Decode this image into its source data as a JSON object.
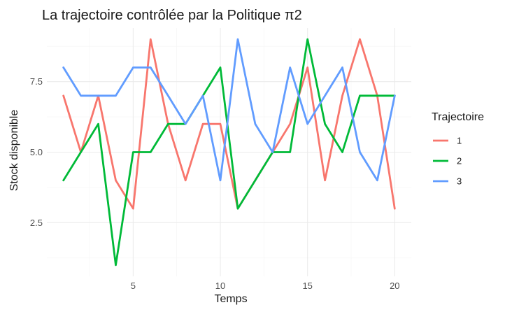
{
  "chart_data": {
    "type": "line",
    "title": "La trajectoire contrôlée par la Politique π2",
    "xlabel": "Temps",
    "ylabel": "Stock disponible",
    "x": [
      1,
      2,
      3,
      4,
      5,
      6,
      7,
      8,
      9,
      10,
      11,
      12,
      13,
      14,
      15,
      16,
      17,
      18,
      19,
      20
    ],
    "xlim": [
      0.05,
      20.95
    ],
    "ylim": [
      0.6,
      9.4
    ],
    "x_ticks": [
      5,
      10,
      15,
      20
    ],
    "x_tick_labels": [
      "5",
      "10",
      "15",
      "20"
    ],
    "y_ticks": [
      2.5,
      5.0,
      7.5
    ],
    "y_tick_labels": [
      "2.5",
      "5.0",
      "7.5"
    ],
    "grid": true,
    "legend": {
      "title": "Trajectoire",
      "placement": "right"
    },
    "series": [
      {
        "name": "1",
        "color": "#F8766D",
        "values": [
          7,
          5,
          7,
          4,
          3,
          9,
          6,
          4,
          6,
          6,
          3,
          4,
          5,
          6,
          8,
          4,
          7,
          9,
          7,
          3
        ]
      },
      {
        "name": "2",
        "color": "#00BA38",
        "values": [
          4,
          5,
          6,
          1,
          5,
          5,
          6,
          6,
          7,
          8,
          3,
          4,
          5,
          5,
          9,
          6,
          5,
          7,
          7,
          7
        ]
      },
      {
        "name": "3",
        "color": "#619CFF",
        "values": [
          8,
          7,
          7,
          7,
          8,
          8,
          7,
          6,
          7,
          4,
          9,
          6,
          5,
          8,
          6,
          7,
          8,
          5,
          4,
          7
        ]
      }
    ]
  }
}
